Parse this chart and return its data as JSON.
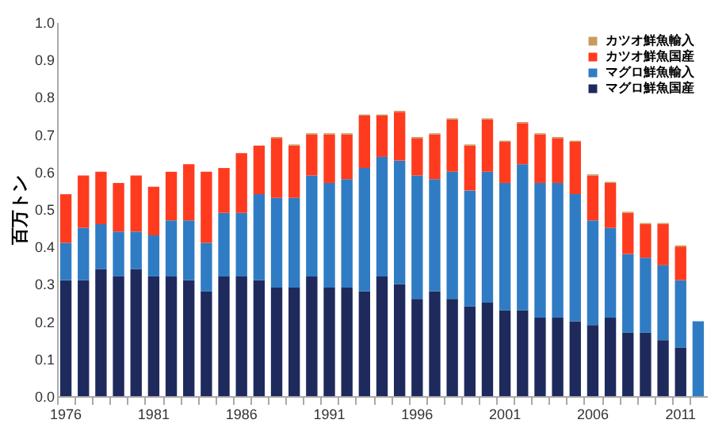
{
  "chart_data": {
    "type": "bar",
    "stacked": true,
    "ylabel": "百万トン",
    "categories": [
      "1976",
      null,
      null,
      null,
      null,
      "1981",
      null,
      null,
      null,
      null,
      "1986",
      null,
      null,
      null,
      null,
      "1991",
      null,
      null,
      null,
      null,
      "1996",
      null,
      null,
      null,
      null,
      "2001",
      null,
      null,
      null,
      null,
      "2006",
      null,
      null,
      null,
      null,
      "2011",
      null
    ],
    "series": [
      {
        "name": "マグロ鮮魚国産",
        "color": "#1f2a5c",
        "values": [
          0.31,
          0.31,
          0.34,
          0.32,
          0.34,
          0.32,
          0.32,
          0.31,
          0.28,
          0.32,
          0.32,
          0.31,
          0.29,
          0.29,
          0.32,
          0.29,
          0.29,
          0.28,
          0.32,
          0.3,
          0.26,
          0.28,
          0.26,
          0.24,
          0.25,
          0.23,
          0.23,
          0.21,
          0.21,
          0.2,
          0.19,
          0.21,
          0.17,
          0.17,
          0.15,
          0.13,
          null
        ]
      },
      {
        "name": "マグロ鮮魚輸入",
        "color": "#2f7cc4",
        "values": [
          0.1,
          0.14,
          0.12,
          0.12,
          0.1,
          0.11,
          0.15,
          0.16,
          0.13,
          0.17,
          0.17,
          0.23,
          0.24,
          0.24,
          0.27,
          0.28,
          0.29,
          0.33,
          0.32,
          0.33,
          0.33,
          0.3,
          0.34,
          0.31,
          0.35,
          0.34,
          0.39,
          0.36,
          0.36,
          0.34,
          0.28,
          0.24,
          0.21,
          0.2,
          0.2,
          0.18,
          0.2
        ]
      },
      {
        "name": "カツオ鮮魚国産",
        "color": "#ff3b1f",
        "values": [
          0.13,
          0.14,
          0.14,
          0.13,
          0.15,
          0.13,
          0.13,
          0.15,
          0.19,
          0.12,
          0.16,
          0.13,
          0.16,
          0.14,
          0.11,
          0.13,
          0.12,
          0.14,
          0.11,
          0.13,
          0.1,
          0.12,
          0.14,
          0.12,
          0.14,
          0.11,
          0.11,
          0.13,
          0.12,
          0.14,
          0.12,
          0.12,
          0.11,
          0.09,
          0.11,
          0.09,
          null
        ]
      },
      {
        "name": "カツオ鮮魚輸入",
        "color": "#c89a5e",
        "values": [
          null,
          null,
          null,
          null,
          null,
          null,
          null,
          null,
          null,
          null,
          null,
          null,
          0.003,
          0.003,
          0.003,
          0.003,
          0.003,
          0.003,
          0.003,
          0.003,
          0.003,
          0.003,
          0.003,
          0.003,
          0.003,
          0.003,
          0.003,
          0.003,
          0.003,
          0.003,
          0.003,
          0.003,
          0.003,
          0.003,
          0.003,
          0.003,
          null
        ]
      }
    ],
    "ylim": [
      0,
      1
    ],
    "yticks": [
      {
        "value": 0,
        "label": "0.0"
      },
      {
        "value": 0.1,
        "label": "0.1"
      },
      {
        "value": 0.2,
        "label": "0.2"
      },
      {
        "value": 0.3,
        "label": "0.3"
      },
      {
        "value": 0.4,
        "label": "0.4"
      },
      {
        "value": 0.5,
        "label": "0.5"
      },
      {
        "value": 0.6,
        "label": "0.6"
      },
      {
        "value": 0.7,
        "label": "0.7"
      },
      {
        "value": 0.8,
        "label": "0.8"
      },
      {
        "value": 0.9,
        "label": "0.9"
      },
      {
        "value": 1,
        "label": "1.0"
      }
    ],
    "legend": "top right"
  }
}
